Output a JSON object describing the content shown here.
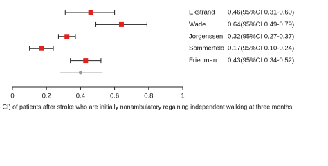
{
  "chart_data": {
    "type": "forest",
    "categories": [
      "Ekstrand",
      "Wade",
      "Jorgenssen",
      "Sommerfeld",
      "Friedman",
      null
    ],
    "values": [
      0.46,
      0.64,
      0.32,
      0.17,
      0.43,
      0.4
    ],
    "lower": [
      0.31,
      0.49,
      0.27,
      0.1,
      0.34,
      0.28
    ],
    "upper": [
      0.6,
      0.79,
      0.37,
      0.24,
      0.52,
      0.53
    ],
    "value_labels": [
      "0.46(95%CI 0.31-0.60)",
      "0.64(95%CI 0.49-0.79)",
      "0.32(95%CI 0.27-0.37)",
      "0.17(95%CI 0.10-0.24)",
      "0.43(95%CI 0.34-0.52)",
      null
    ],
    "colors": [
      "#e3211c",
      "#e3211c",
      "#e3211c",
      "#e3211c",
      "#e3211c",
      "#999999"
    ],
    "line_colors": [
      "#222222",
      "#222222",
      "#222222",
      "#222222",
      "#222222",
      "#aaaaaa"
    ],
    "xlim": [
      0,
      1
    ],
    "xticks": [
      0,
      0.2,
      0.4,
      0.6,
      0.8,
      1
    ],
    "caption": "- CI) of patients after stroke who are initially nonambulatory regaining independent walking at three months"
  }
}
